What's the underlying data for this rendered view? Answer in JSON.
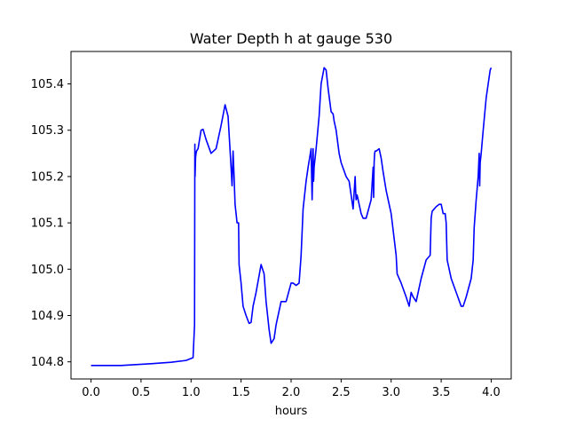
{
  "chart_data": {
    "type": "line",
    "title": "Water Depth h at gauge 530",
    "xlabel": "hours",
    "ylabel": "",
    "xlim": [
      -0.2,
      4.2
    ],
    "ylim": [
      104.763,
      105.47
    ],
    "grid": false,
    "x_ticks": [
      0.0,
      0.5,
      1.0,
      1.5,
      2.0,
      2.5,
      3.0,
      3.5,
      4.0
    ],
    "x_tick_labels": [
      "0.0",
      "0.5",
      "1.0",
      "1.5",
      "2.0",
      "2.5",
      "3.0",
      "3.5",
      "4.0"
    ],
    "y_ticks": [
      104.8,
      104.9,
      105.0,
      105.1,
      105.2,
      105.3,
      105.4
    ],
    "y_tick_labels": [
      "104.8",
      "104.9",
      "105.0",
      "105.1",
      "105.2",
      "105.3",
      "105.4"
    ],
    "series": [
      {
        "color": "#0000ff",
        "x": [
          0.0,
          0.3,
          0.6,
          0.8,
          0.95,
          1.02,
          1.035,
          1.038,
          1.04,
          1.045,
          1.05,
          1.055,
          1.07,
          1.1,
          1.12,
          1.15,
          1.2,
          1.25,
          1.3,
          1.34,
          1.37,
          1.4,
          1.41,
          1.42,
          1.43,
          1.44,
          1.46,
          1.475,
          1.48,
          1.5,
          1.52,
          1.55,
          1.58,
          1.6,
          1.62,
          1.65,
          1.7,
          1.73,
          1.75,
          1.78,
          1.8,
          1.83,
          1.85,
          1.9,
          1.95,
          2.0,
          2.02,
          2.05,
          2.08,
          2.1,
          2.12,
          2.13,
          2.15,
          2.17,
          2.2,
          2.21,
          2.215,
          2.22,
          2.225,
          2.23,
          2.25,
          2.28,
          2.3,
          2.33,
          2.35,
          2.37,
          2.4,
          2.42,
          2.43,
          2.45,
          2.48,
          2.5,
          2.55,
          2.58,
          2.6,
          2.62,
          2.64,
          2.645,
          2.65,
          2.66,
          2.7,
          2.72,
          2.75,
          2.8,
          2.82,
          2.825,
          2.83,
          2.835,
          2.84,
          2.85,
          2.88,
          2.9,
          2.92,
          2.95,
          3.0,
          3.05,
          3.06,
          3.1,
          3.15,
          3.18,
          3.2,
          3.22,
          3.25,
          3.28,
          3.3,
          3.35,
          3.39,
          3.4,
          3.41,
          3.45,
          3.48,
          3.5,
          3.52,
          3.54,
          3.55,
          3.56,
          3.58,
          3.6,
          3.65,
          3.7,
          3.72,
          3.75,
          3.8,
          3.82,
          3.83,
          3.85,
          3.87,
          3.88,
          3.885,
          3.89,
          3.9,
          3.92,
          3.95,
          3.97,
          3.99,
          4.0
        ],
        "y": [
          104.792,
          104.792,
          104.796,
          104.799,
          104.803,
          104.809,
          104.88,
          105.27,
          105.2,
          105.24,
          105.25,
          105.255,
          105.26,
          105.3,
          105.302,
          105.28,
          105.25,
          105.26,
          105.31,
          105.355,
          105.33,
          105.22,
          105.18,
          105.255,
          105.2,
          105.14,
          105.1,
          105.1,
          105.01,
          104.97,
          104.92,
          104.9,
          104.883,
          104.885,
          104.92,
          104.95,
          105.01,
          104.99,
          104.93,
          104.87,
          104.84,
          104.85,
          104.88,
          104.93,
          104.93,
          104.97,
          104.97,
          104.965,
          104.97,
          105.03,
          105.13,
          105.15,
          105.19,
          105.22,
          105.26,
          105.15,
          105.2,
          105.26,
          105.19,
          105.22,
          105.26,
          105.33,
          105.4,
          105.435,
          105.43,
          105.39,
          105.34,
          105.335,
          105.32,
          105.3,
          105.25,
          105.23,
          105.2,
          105.19,
          105.16,
          105.13,
          105.2,
          105.17,
          105.15,
          105.16,
          105.12,
          105.11,
          105.11,
          105.15,
          105.22,
          105.155,
          105.23,
          105.25,
          105.255,
          105.255,
          105.26,
          105.24,
          105.21,
          105.17,
          105.12,
          105.03,
          104.99,
          104.97,
          104.94,
          104.92,
          104.95,
          104.94,
          104.93,
          104.96,
          104.98,
          105.02,
          105.03,
          105.11,
          105.125,
          105.135,
          105.14,
          105.14,
          105.12,
          105.12,
          105.1,
          105.02,
          105.0,
          104.98,
          104.95,
          104.92,
          104.92,
          104.94,
          104.98,
          105.02,
          105.09,
          105.15,
          105.2,
          105.25,
          105.18,
          105.23,
          105.25,
          105.3,
          105.37,
          105.4,
          105.43,
          105.435
        ]
      }
    ]
  }
}
